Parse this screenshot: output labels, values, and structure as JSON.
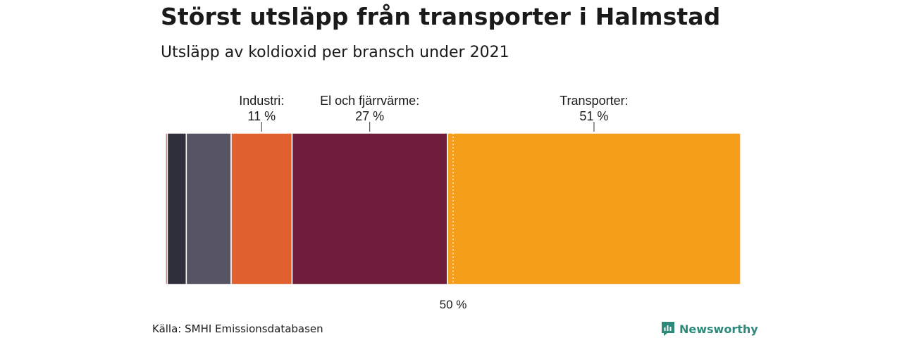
{
  "title": "Störst utsläpp från transporter i Halmstad",
  "subtitle": "Utsläpp av koldioxid per bransch under 2021",
  "source": "Källa: SMHI Emissionsdatabasen",
  "brand": "Newsworthy",
  "chart_data": {
    "type": "bar",
    "orientation": "stacked-100-percent",
    "segments": [
      {
        "value": 0.3,
        "color": "#9a3a2a"
      },
      {
        "value": 3.3,
        "color": "#2f2e3b"
      },
      {
        "value": 7.8,
        "color": "#575563"
      },
      {
        "value": 10.6,
        "color": "#e0602e",
        "label": "Industri:",
        "value_label": "11 %"
      },
      {
        "value": 27.0,
        "color": "#6f1d3b",
        "label": "El och fjärrvärme:",
        "value_label": "27 %"
      },
      {
        "value": 51.0,
        "color": "#f59e1a",
        "label": "Transporter:",
        "value_label": "51 %"
      }
    ],
    "reference_line": {
      "value": 50,
      "label": "50 %"
    },
    "xlim": [
      0,
      100
    ]
  }
}
